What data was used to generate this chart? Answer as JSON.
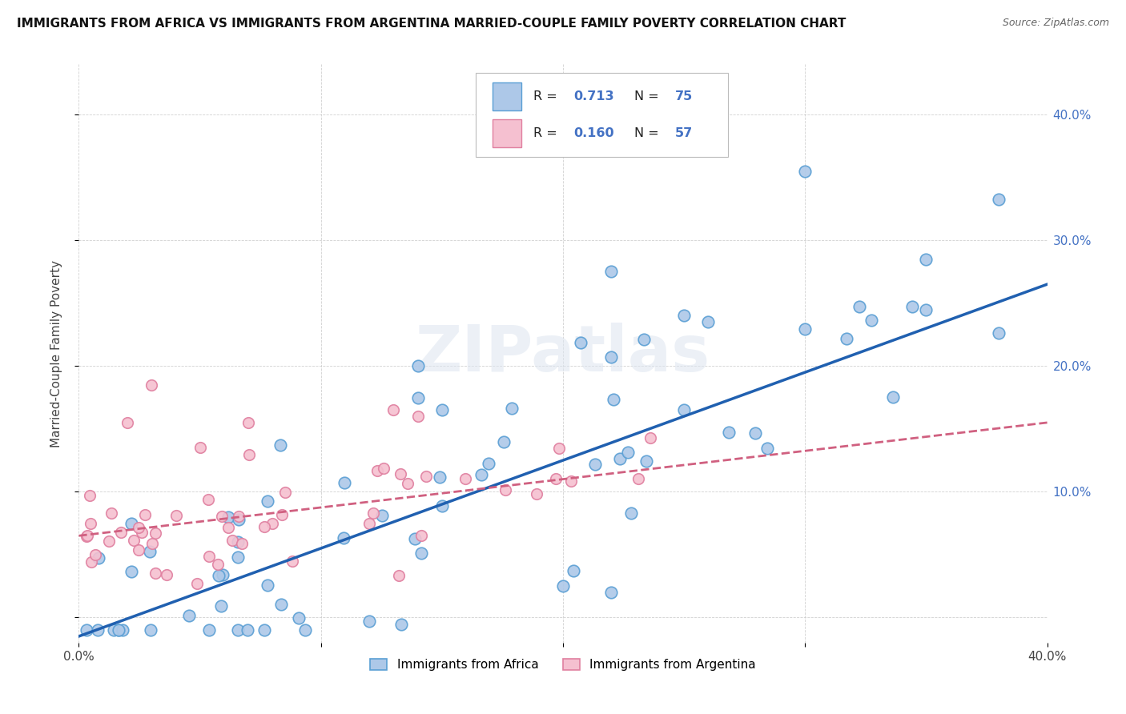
{
  "title": "IMMIGRANTS FROM AFRICA VS IMMIGRANTS FROM ARGENTINA MARRIED-COUPLE FAMILY POVERTY CORRELATION CHART",
  "source": "Source: ZipAtlas.com",
  "ylabel": "Married-Couple Family Poverty",
  "xlim": [
    0.0,
    0.4
  ],
  "ylim": [
    -0.02,
    0.44
  ],
  "xticks": [
    0.0,
    0.1,
    0.2,
    0.3,
    0.4
  ],
  "xticklabels": [
    "0.0%",
    "",
    "",
    "",
    "40.0%"
  ],
  "yticks": [
    0.0,
    0.1,
    0.2,
    0.3,
    0.4
  ],
  "right_yticklabels": [
    "",
    "10.0%",
    "20.0%",
    "30.0%",
    "40.0%"
  ],
  "africa_fill": "#adc8e8",
  "africa_edge": "#5a9fd4",
  "argentina_fill": "#f5c0d0",
  "argentina_edge": "#e080a0",
  "africa_line_color": "#2060b0",
  "argentina_line_color": "#d06080",
  "R_africa": 0.713,
  "N_africa": 75,
  "R_argentina": 0.16,
  "N_argentina": 57,
  "watermark": "ZIPatlas",
  "legend_label_africa": "Immigrants from Africa",
  "legend_label_argentina": "Immigrants from Argentina",
  "africa_line_x": [
    0.0,
    0.4
  ],
  "africa_line_y": [
    -0.015,
    0.265
  ],
  "argentina_line_x": [
    0.0,
    0.4
  ],
  "argentina_line_y": [
    0.065,
    0.155
  ]
}
